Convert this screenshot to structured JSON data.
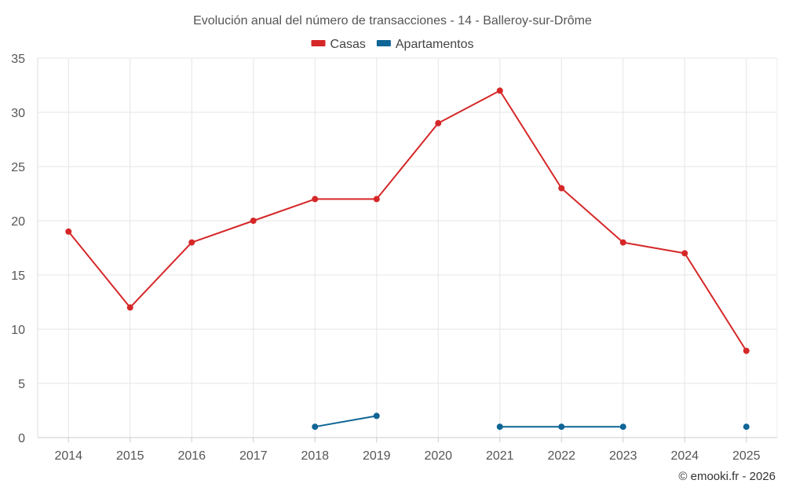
{
  "chart_data": {
    "type": "line",
    "title": "Evolución anual del número de transacciones - 14 - Balleroy-sur-Drôme",
    "categories": [
      "2014",
      "2015",
      "2016",
      "2017",
      "2018",
      "2019",
      "2020",
      "2021",
      "2022",
      "2023",
      "2024",
      "2025"
    ],
    "series": [
      {
        "name": "Casas",
        "color": "#d62728",
        "values": [
          19,
          12,
          18,
          20,
          22,
          22,
          29,
          32,
          23,
          18,
          17,
          8
        ]
      },
      {
        "name": "Apartamentos",
        "color": "#0e6596",
        "values": [
          null,
          null,
          null,
          null,
          1,
          2,
          null,
          1,
          1,
          1,
          null,
          1
        ]
      }
    ],
    "ylim": [
      0,
      35
    ],
    "yticks": [
      0,
      5,
      10,
      15,
      20,
      25,
      30,
      35
    ],
    "xlabel": "",
    "ylabel": "",
    "grid": true,
    "legend": "top-center"
  },
  "credit": "© emooki.fr - 2026"
}
